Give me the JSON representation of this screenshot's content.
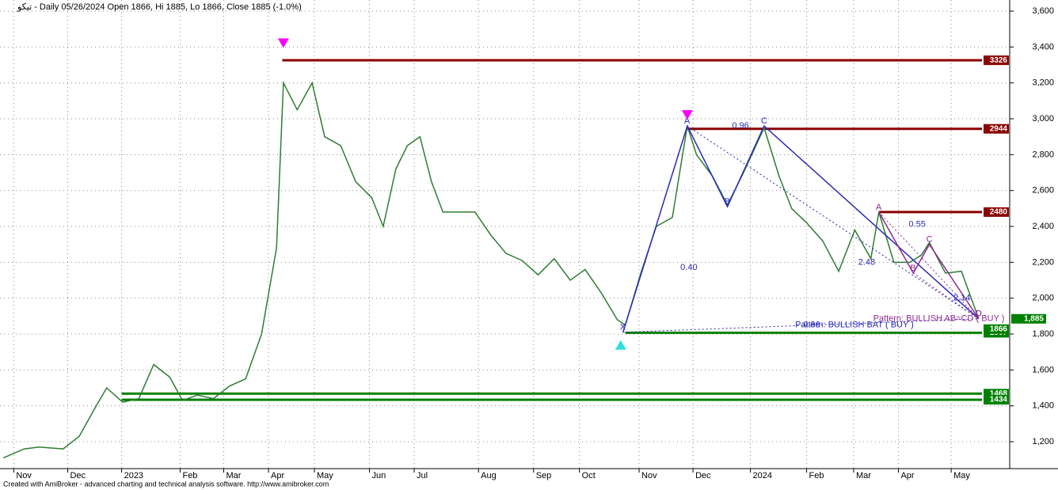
{
  "chart_data": {
    "type": "line",
    "title": "تيكو - Daily 05/26/2024 Open 1866, Hi 1885, Lo 1866, Close 1885 (-1.0%)",
    "footer": "Created with AmiBroker - advanced charting and technical analysis software. http://www.amibroker.com",
    "xlim": [
      0,
      88
    ],
    "ylim": [
      1050,
      3662
    ],
    "xticks": [
      {
        "value": 1.2,
        "label": "Nov"
      },
      {
        "value": 5.9,
        "label": "Dec"
      },
      {
        "value": 10.6,
        "label": "2023"
      },
      {
        "value": 15.7,
        "label": "Feb"
      },
      {
        "value": 19.5,
        "label": "Mar"
      },
      {
        "value": 23.4,
        "label": "Apr"
      },
      {
        "value": 27.4,
        "label": "May"
      },
      {
        "value": 32.2,
        "label": "Jun"
      },
      {
        "value": 36.1,
        "label": "Jul"
      },
      {
        "value": 41.7,
        "label": "Aug"
      },
      {
        "value": 46.5,
        "label": "Sep"
      },
      {
        "value": 50.5,
        "label": "Oct"
      },
      {
        "value": 55.7,
        "label": "Nov"
      },
      {
        "value": 60.4,
        "label": "Dec"
      },
      {
        "value": 65.4,
        "label": "2024"
      },
      {
        "value": 70.3,
        "label": "Feb"
      },
      {
        "value": 74.4,
        "label": "Mar"
      },
      {
        "value": 78.3,
        "label": "Apr"
      },
      {
        "value": 82.9,
        "label": "May"
      }
    ],
    "yticks": [
      {
        "value": 1200,
        "label": "1,200"
      },
      {
        "value": 1400,
        "label": "1,400"
      },
      {
        "value": 1600,
        "label": "1,600"
      },
      {
        "value": 1800,
        "label": "1,800"
      },
      {
        "value": 2000,
        "label": "2,000"
      },
      {
        "value": 2200,
        "label": "2,200"
      },
      {
        "value": 2400,
        "label": "2,400"
      },
      {
        "value": 2600,
        "label": "2,600"
      },
      {
        "value": 2800,
        "label": "2,800"
      },
      {
        "value": 3000,
        "label": "3,000"
      },
      {
        "value": 3200,
        "label": "3,200"
      },
      {
        "value": 3400,
        "label": "3,400"
      },
      {
        "value": 3600,
        "label": "3,600"
      }
    ],
    "grid": true,
    "series": [
      {
        "color": "#2e7d32",
        "x": [
          0.3,
          2.1,
          3.4,
          5.5,
          6.9,
          8.3,
          9.3,
          10.7,
          12.1,
          13.4,
          14.8,
          15.9,
          17.2,
          18.6,
          20,
          21.4,
          22.8,
          24.1,
          24.7,
          25.9,
          27.2,
          28.3,
          29.7,
          31,
          32.4,
          33.4,
          34.5,
          35.5,
          36.6,
          37.6,
          38.6,
          41.4,
          42.8,
          44.1,
          45.5,
          46.9,
          48.3,
          49.7,
          51,
          52.4,
          53.8,
          54.5,
          55.9,
          57.2,
          58.6,
          59.9,
          60.7,
          62.1,
          63.4,
          64.8,
          66.6,
          67.9,
          69,
          70.3,
          71.7,
          73.1,
          74.5,
          75.9,
          76.6,
          77.9,
          79.3,
          80.3,
          81,
          82.4,
          83.8,
          85.3
        ],
        "values": [
          1110,
          1160,
          1170,
          1160,
          1230,
          1390,
          1500,
          1420,
          1440,
          1630,
          1560,
          1430,
          1460,
          1440,
          1510,
          1550,
          1800,
          2280,
          3200,
          3050,
          3200,
          2900,
          2850,
          2650,
          2560,
          2400,
          2720,
          2850,
          2900,
          2650,
          2480,
          2480,
          2350,
          2250,
          2210,
          2130,
          2220,
          2100,
          2160,
          2030,
          1880,
          1850,
          2150,
          2400,
          2450,
          2960,
          2800,
          2680,
          2520,
          2700,
          2950,
          2680,
          2500,
          2420,
          2320,
          2150,
          2380,
          2220,
          2480,
          2200,
          2200,
          2240,
          2310,
          2140,
          2150,
          1885
        ]
      }
    ],
    "levels": [
      {
        "value": 3326,
        "label": "3326",
        "color": "#8b0000",
        "from": 24.6
      },
      {
        "value": 2944,
        "label": "2944",
        "color": "#8b0000",
        "from": 59.9
      },
      {
        "value": 2480,
        "label": "2480",
        "color": "#8b0000",
        "from": 76.6
      },
      {
        "value": 1807,
        "label": "1807",
        "color": "#008000",
        "from": 54.5
      },
      {
        "value": 1468,
        "label": "1468",
        "color": "#008000",
        "from": 10.6
      },
      {
        "value": 1434,
        "label": "1434",
        "color": "#008000",
        "from": 10.6
      }
    ],
    "price_tags": [
      {
        "value": 1885,
        "label": "1,885",
        "color": "#008000"
      },
      {
        "value": 1866,
        "label": "1866",
        "color": "#008000"
      }
    ],
    "patterns": [
      {
        "name": "Pattern: BULLISH BAT ( BUY )",
        "color": "#2a2ab8",
        "name_x": 69.3,
        "name_y": 1850,
        "point_labels": [
          "X",
          "A",
          "B",
          "C",
          "D"
        ],
        "x": [
          54.3,
          59.9,
          63.4,
          66.6,
          85.3
        ],
        "y": [
          1810,
          2960,
          2510,
          2960,
          1885
        ]
      },
      {
        "name": "Pattern: BULLISH AB=CD ( BUY )",
        "color": "#8e2a8e",
        "name_x": 76.1,
        "name_y": 1885,
        "point_labels": [
          "A",
          "B",
          "C",
          "D"
        ],
        "x": [
          76.6,
          79.6,
          81,
          85.3
        ],
        "y": [
          2480,
          2140,
          2300,
          1885
        ]
      }
    ],
    "ratios": [
      {
        "label": "0.96",
        "x": 63.8,
        "y": 2960
      },
      {
        "label": "0.40",
        "x": 59.3,
        "y": 2170
      },
      {
        "label": "0.55",
        "x": 79.2,
        "y": 2410
      },
      {
        "label": "2.48",
        "x": 74.8,
        "y": 2200
      },
      {
        "label": "2.14",
        "x": 83.1,
        "y": 2000
      },
      {
        "label": "0.86",
        "x": 70,
        "y": 1850
      }
    ],
    "markers": [
      {
        "x": 24.7,
        "y": 3360,
        "shape": "down",
        "color": "#ff00ff"
      },
      {
        "x": 59.9,
        "y": 2960,
        "shape": "down",
        "color": "#ff00ff"
      },
      {
        "x": 54.1,
        "y": 1810,
        "shape": "up",
        "color": "#33dddd"
      }
    ]
  }
}
